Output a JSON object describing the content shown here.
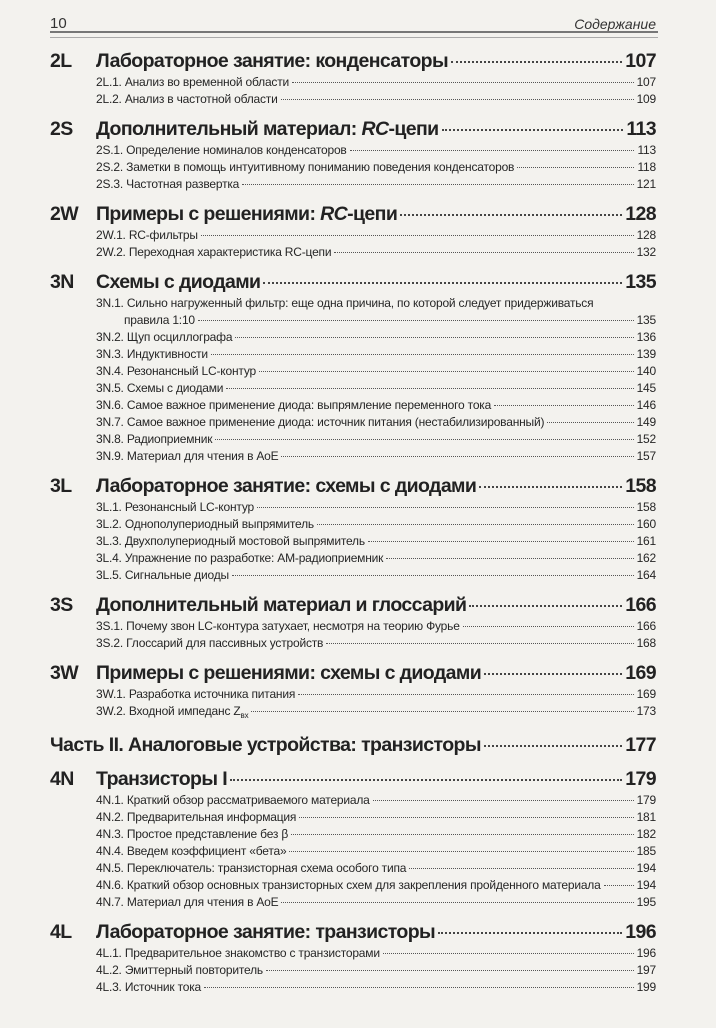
{
  "header": {
    "page_number": "10",
    "title": "Содержание"
  },
  "sections": [
    {
      "code": "2L",
      "title": "Лабораторное занятие: конденсаторы",
      "page": "107",
      "items": [
        {
          "title": "2L.1. Анализ во временной области",
          "page": "107"
        },
        {
          "title": "2L.2. Анализ в частотной области",
          "page": "109"
        }
      ]
    },
    {
      "code": "2S",
      "title": "Дополнительный материал: RC-цепи",
      "em": "RC",
      "page": "113",
      "items": [
        {
          "title": "2S.1. Определение номиналов конденсаторов",
          "page": "113"
        },
        {
          "title": "2S.2. Заметки в помощь интуитивному пониманию поведения конденсаторов",
          "page": "118"
        },
        {
          "title": "2S.3. Частотная развертка",
          "page": "121"
        }
      ]
    },
    {
      "code": "2W",
      "title": "Примеры с решениями: RC-цепи",
      "em": "RC",
      "page": "128",
      "items": [
        {
          "title": "2W.1. RC-фильтры",
          "em": "RC",
          "page": "128"
        },
        {
          "title": "2W.2. Переходная характеристика RC-цепи",
          "em": "RC",
          "page": "132"
        }
      ]
    },
    {
      "code": "3N",
      "title": "Схемы с диодами",
      "page": "135",
      "items": [
        {
          "title": "3N.1. Сильно нагруженный фильтр: еще одна причина, по которой следует придерживаться",
          "continuation": "правила 1:10",
          "page": "135"
        },
        {
          "title": "3N.2. Щуп осциллографа",
          "page": "136"
        },
        {
          "title": "3N.3. Индуктивности",
          "page": "139"
        },
        {
          "title": "3N.4. Резонансный LC-контур",
          "em": "LC",
          "page": "140"
        },
        {
          "title": "3N.5. Схемы с диодами",
          "page": "145"
        },
        {
          "title": "3N.6. Самое важное применение диода: выпрямление переменного тока",
          "page": "146"
        },
        {
          "title": "3N.7. Самое важное применение диода: источник питания (нестабилизированный)",
          "page": "149"
        },
        {
          "title": "3N.8. Радиоприемник",
          "page": "152"
        },
        {
          "title": "3N.9. Материал для чтения в AoE",
          "page": "157"
        }
      ]
    },
    {
      "code": "3L",
      "title": "Лабораторное занятие: схемы с диодами",
      "page": "158",
      "items": [
        {
          "title": "3L.1. Резонансный LC-контур",
          "em": "LC",
          "page": "158"
        },
        {
          "title": "3L.2. Однополупериодный выпрямитель",
          "page": "160"
        },
        {
          "title": "3L.3. Двухполупериодный мостовой выпрямитель",
          "page": "161"
        },
        {
          "title": "3L.4. Упражнение по разработке: AM-радиоприемник",
          "page": "162"
        },
        {
          "title": "3L.5. Сигнальные диоды",
          "page": "164"
        }
      ]
    },
    {
      "code": "3S",
      "title": "Дополнительный материал и глоссарий",
      "page": "166",
      "items": [
        {
          "title": "3S.1. Почему звон LC-контура затухает, несмотря на теорию Фурье",
          "em": "LC",
          "page": "166"
        },
        {
          "title": "3S.2. Глоссарий для пассивных устройств",
          "page": "168"
        }
      ]
    },
    {
      "code": "3W",
      "title": "Примеры с решениями: схемы с диодами",
      "page": "169",
      "items": [
        {
          "title": "3W.1. Разработка источника питания",
          "page": "169"
        },
        {
          "title": "3W.2. Входной импеданс Z",
          "em": "Z",
          "sub": "вх",
          "page": "173"
        }
      ]
    },
    {
      "part": true,
      "title": "Часть II. Аналоговые устройства: транзисторы",
      "page": "177",
      "items": []
    },
    {
      "code": "4N",
      "title": "Транзисторы I",
      "page": "179",
      "items": [
        {
          "title": "4N.1. Краткий обзор рассматриваемого материала",
          "page": "179"
        },
        {
          "title": "4N.2. Предварительная информация",
          "page": "181"
        },
        {
          "title": "4N.3. Простое представление без β",
          "page": "182"
        },
        {
          "title": "4N.4. Введем коэффициент «бета»",
          "page": "185"
        },
        {
          "title": "4N.5. Переключатель: транзисторная схема особого типа",
          "page": "194"
        },
        {
          "title": "4N.6. Краткий обзор основных транзисторных схем для закрепления пройденного материала",
          "page": "194"
        },
        {
          "title": "4N.7. Материал для чтения в AoE",
          "page": "195"
        }
      ]
    },
    {
      "code": "4L",
      "title": "Лабораторное занятие: транзисторы",
      "page": "196",
      "items": [
        {
          "title": "4L.1. Предварительное знакомство с транзисторами",
          "page": "196"
        },
        {
          "title": "4L.2. Эмиттерный повторитель",
          "page": "197"
        },
        {
          "title": "4L.3. Источник тока",
          "page": "199"
        }
      ]
    }
  ]
}
